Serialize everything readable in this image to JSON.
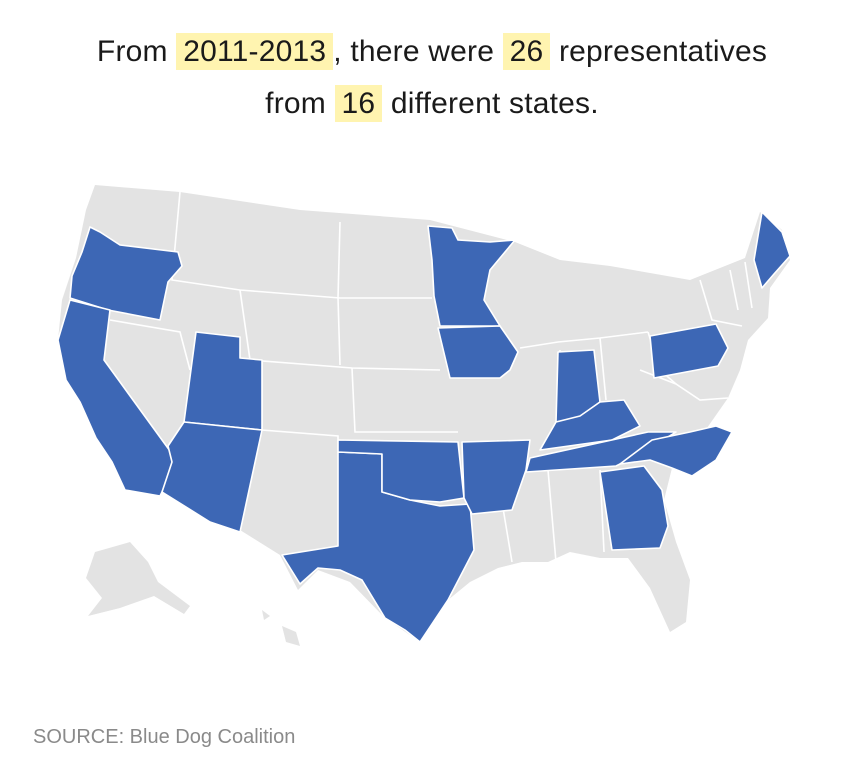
{
  "headline": {
    "line1_prefix": "From ",
    "period": "2011-2013",
    "line1_mid": ", there were ",
    "count": "26",
    "line1_suffix": " representatives",
    "line2_prefix": "from ",
    "states_count": "16",
    "line2_suffix": " different states."
  },
  "colors": {
    "highlighted_state": "#3d67b5",
    "other_state": "#e3e3e3",
    "number_highlight": "#fff4b0"
  },
  "highlighted_states": [
    "OR",
    "CA",
    "UT",
    "AZ",
    "TX",
    "OK",
    "AR",
    "MN",
    "IA",
    "IN",
    "KY",
    "TN",
    "GA",
    "NC",
    "PA",
    "ME"
  ],
  "source": "SOURCE: Blue Dog Coalition"
}
